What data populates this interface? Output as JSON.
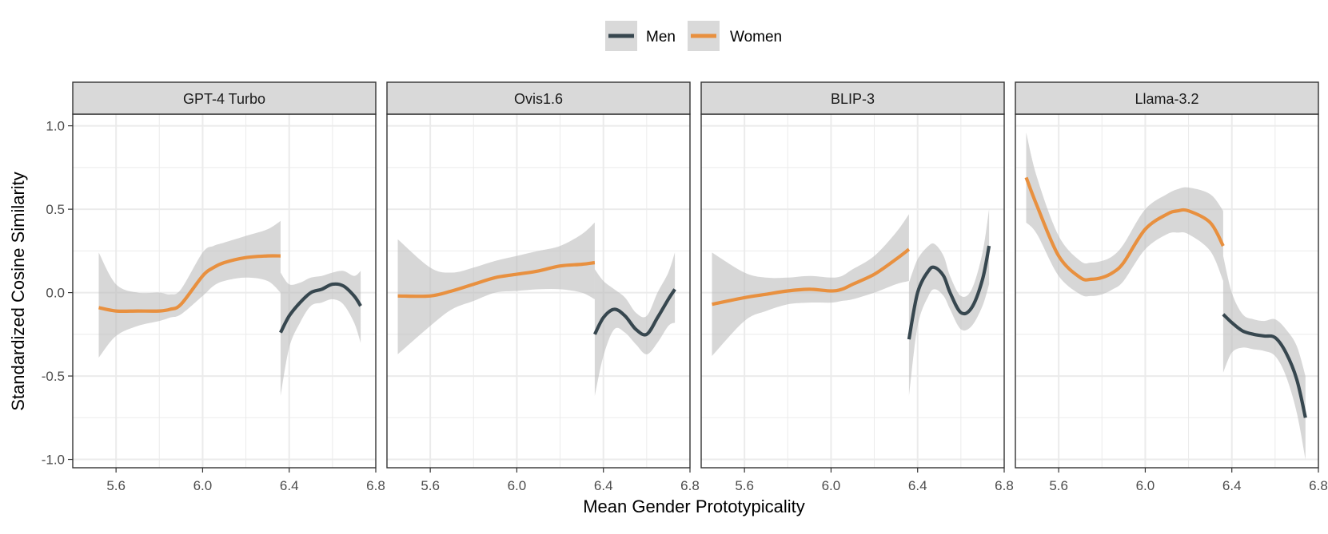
{
  "chart_data": {
    "type": "line",
    "xlabel": "Mean Gender Prototypicality",
    "ylabel": "Standardized Cosine Similarity",
    "xlim": [
      5.4,
      6.8
    ],
    "ylim": [
      -1.05,
      1.07
    ],
    "xticks": [
      5.6,
      6.0,
      6.4,
      6.8
    ],
    "xtick_labels": [
      "5.6",
      "6.0",
      "6.4",
      "6.8"
    ],
    "yticks": [
      1.0,
      0.5,
      0.0,
      -0.5,
      -1.0
    ],
    "ytick_labels": [
      "1.0",
      "0.5",
      "0.0",
      "-0.5",
      "-1.0"
    ],
    "grid": true,
    "legend": {
      "position": "top",
      "entries": [
        {
          "label": "Men",
          "color": "#37474F"
        },
        {
          "label": "Women",
          "color": "#E8903F"
        }
      ]
    },
    "colors": {
      "men": "#37474F",
      "women": "#E8903F",
      "ribbon": "#BDBDBD",
      "strip_bg": "#D9D9D9",
      "grid": "#EBEBEB",
      "border": "#333333"
    },
    "panels": [
      {
        "title": "GPT-4 Turbo",
        "series": [
          {
            "name": "Women",
            "x": [
              5.52,
              5.6,
              5.7,
              5.8,
              5.85,
              5.9,
              6.0,
              6.05,
              6.1,
              6.2,
              6.3,
              6.36
            ],
            "y": [
              -0.09,
              -0.11,
              -0.11,
              -0.11,
              -0.1,
              -0.07,
              0.1,
              0.15,
              0.18,
              0.21,
              0.22,
              0.22
            ],
            "lower": [
              -0.39,
              -0.26,
              -0.2,
              -0.17,
              -0.15,
              -0.13,
              -0.02,
              0.04,
              0.07,
              0.09,
              0.07,
              0.0
            ],
            "upper": [
              0.24,
              0.05,
              0.0,
              0.0,
              -0.01,
              0.02,
              0.24,
              0.28,
              0.3,
              0.34,
              0.38,
              0.43
            ]
          },
          {
            "name": "Men",
            "x": [
              6.36,
              6.4,
              6.45,
              6.5,
              6.55,
              6.6,
              6.65,
              6.7,
              6.73
            ],
            "y": [
              -0.24,
              -0.14,
              -0.06,
              0.0,
              0.02,
              0.05,
              0.04,
              -0.02,
              -0.08
            ],
            "lower": [
              -0.62,
              -0.33,
              -0.18,
              -0.08,
              -0.06,
              -0.04,
              -0.07,
              -0.18,
              -0.3
            ],
            "upper": [
              0.12,
              0.05,
              0.06,
              0.09,
              0.1,
              0.12,
              0.13,
              0.1,
              0.13
            ]
          }
        ]
      },
      {
        "title": "Ovis1.6",
        "series": [
          {
            "name": "Women",
            "x": [
              5.45,
              5.6,
              5.7,
              5.8,
              5.9,
              6.0,
              6.1,
              6.2,
              6.3,
              6.36
            ],
            "y": [
              -0.02,
              -0.02,
              0.01,
              0.05,
              0.09,
              0.11,
              0.13,
              0.16,
              0.17,
              0.18
            ],
            "lower": [
              -0.37,
              -0.2,
              -0.1,
              -0.05,
              0.0,
              0.01,
              0.02,
              0.02,
              0.0,
              -0.04
            ],
            "upper": [
              0.32,
              0.15,
              0.12,
              0.15,
              0.19,
              0.22,
              0.25,
              0.28,
              0.35,
              0.42
            ]
          },
          {
            "name": "Men",
            "x": [
              6.36,
              6.4,
              6.45,
              6.5,
              6.55,
              6.6,
              6.65,
              6.7,
              6.73
            ],
            "y": [
              -0.25,
              -0.15,
              -0.1,
              -0.14,
              -0.22,
              -0.25,
              -0.15,
              -0.04,
              0.02
            ],
            "lower": [
              -0.62,
              -0.38,
              -0.22,
              -0.24,
              -0.31,
              -0.37,
              -0.3,
              -0.2,
              -0.18
            ],
            "upper": [
              0.14,
              0.07,
              0.02,
              -0.03,
              -0.12,
              -0.14,
              0.0,
              0.12,
              0.24
            ]
          }
        ]
      },
      {
        "title": "BLIP-3",
        "series": [
          {
            "name": "Women",
            "x": [
              5.45,
              5.6,
              5.7,
              5.8,
              5.9,
              6.0,
              6.05,
              6.1,
              6.2,
              6.3,
              6.36
            ],
            "y": [
              -0.07,
              -0.03,
              -0.01,
              0.01,
              0.02,
              0.01,
              0.02,
              0.05,
              0.11,
              0.2,
              0.26
            ],
            "lower": [
              -0.38,
              -0.17,
              -0.11,
              -0.07,
              -0.06,
              -0.06,
              -0.05,
              -0.04,
              0.0,
              0.05,
              0.07
            ],
            "upper": [
              0.24,
              0.12,
              0.09,
              0.09,
              0.1,
              0.09,
              0.1,
              0.14,
              0.22,
              0.36,
              0.47
            ]
          },
          {
            "name": "Men",
            "x": [
              6.36,
              6.4,
              6.45,
              6.48,
              6.52,
              6.55,
              6.6,
              6.65,
              6.7,
              6.73
            ],
            "y": [
              -0.28,
              0.0,
              0.13,
              0.15,
              0.1,
              0.0,
              -0.12,
              -0.09,
              0.08,
              0.28
            ],
            "lower": [
              -0.62,
              -0.2,
              -0.02,
              0.02,
              -0.02,
              -0.1,
              -0.22,
              -0.2,
              -0.08,
              0.05
            ],
            "upper": [
              0.06,
              0.2,
              0.28,
              0.29,
              0.22,
              0.1,
              -0.02,
              0.02,
              0.24,
              0.5
            ]
          }
        ]
      },
      {
        "title": "Llama-3.2",
        "series": [
          {
            "name": "Women",
            "x": [
              5.45,
              5.5,
              5.6,
              5.7,
              5.75,
              5.8,
              5.85,
              5.9,
              6.0,
              6.1,
              6.15,
              6.2,
              6.3,
              6.36
            ],
            "y": [
              0.69,
              0.52,
              0.22,
              0.09,
              0.08,
              0.09,
              0.12,
              0.18,
              0.38,
              0.47,
              0.49,
              0.49,
              0.42,
              0.28
            ],
            "lower": [
              0.42,
              0.35,
              0.1,
              -0.01,
              -0.02,
              -0.01,
              0.02,
              0.07,
              0.26,
              0.35,
              0.36,
              0.35,
              0.25,
              0.07
            ],
            "upper": [
              0.96,
              0.69,
              0.34,
              0.19,
              0.18,
              0.19,
              0.22,
              0.29,
              0.5,
              0.59,
              0.62,
              0.63,
              0.59,
              0.49
            ]
          },
          {
            "name": "Men",
            "x": [
              6.36,
              6.4,
              6.45,
              6.5,
              6.55,
              6.6,
              6.65,
              6.7,
              6.74
            ],
            "y": [
              -0.13,
              -0.18,
              -0.23,
              -0.25,
              -0.26,
              -0.27,
              -0.36,
              -0.52,
              -0.75
            ],
            "lower": [
              -0.48,
              -0.36,
              -0.33,
              -0.34,
              -0.35,
              -0.38,
              -0.5,
              -0.72,
              -1.0
            ],
            "upper": [
              0.22,
              0.0,
              -0.13,
              -0.16,
              -0.17,
              -0.16,
              -0.22,
              -0.32,
              -0.5
            ]
          }
        ]
      }
    ]
  }
}
